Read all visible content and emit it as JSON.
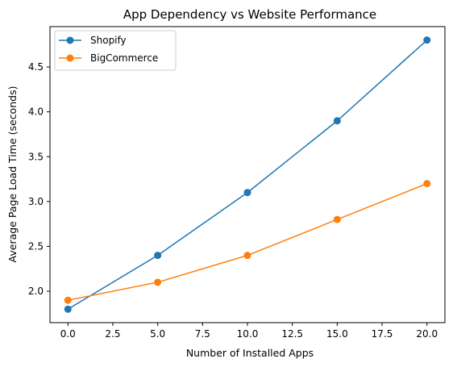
{
  "chart_data": {
    "type": "line",
    "title": "App Dependency vs Website Performance",
    "xlabel": "Number of Installed Apps",
    "ylabel": "Average Page Load Time (seconds)",
    "x": [
      0,
      5,
      10,
      15,
      20
    ],
    "xlim": [
      -1,
      21
    ],
    "ylim": [
      1.65,
      4.95
    ],
    "xticks": [
      0.0,
      2.5,
      5.0,
      7.5,
      10.0,
      12.5,
      15.0,
      17.5,
      20.0
    ],
    "xtick_labels": [
      "0.0",
      "2.5",
      "5.0",
      "7.5",
      "10.0",
      "12.5",
      "15.0",
      "17.5",
      "20.0"
    ],
    "yticks": [
      2.0,
      2.5,
      3.0,
      3.5,
      4.0,
      4.5
    ],
    "ytick_labels": [
      "2.0",
      "2.5",
      "3.0",
      "3.5",
      "4.0",
      "4.5"
    ],
    "grid": false,
    "legend_position": "top-left",
    "series": [
      {
        "name": "Shopify",
        "color": "#1f77b4",
        "marker": "circle",
        "values": [
          1.8,
          2.4,
          3.1,
          3.9,
          4.8
        ]
      },
      {
        "name": "BigCommerce",
        "color": "#ff7f0e",
        "marker": "circle",
        "values": [
          1.9,
          2.1,
          2.4,
          2.8,
          3.2
        ]
      }
    ]
  }
}
